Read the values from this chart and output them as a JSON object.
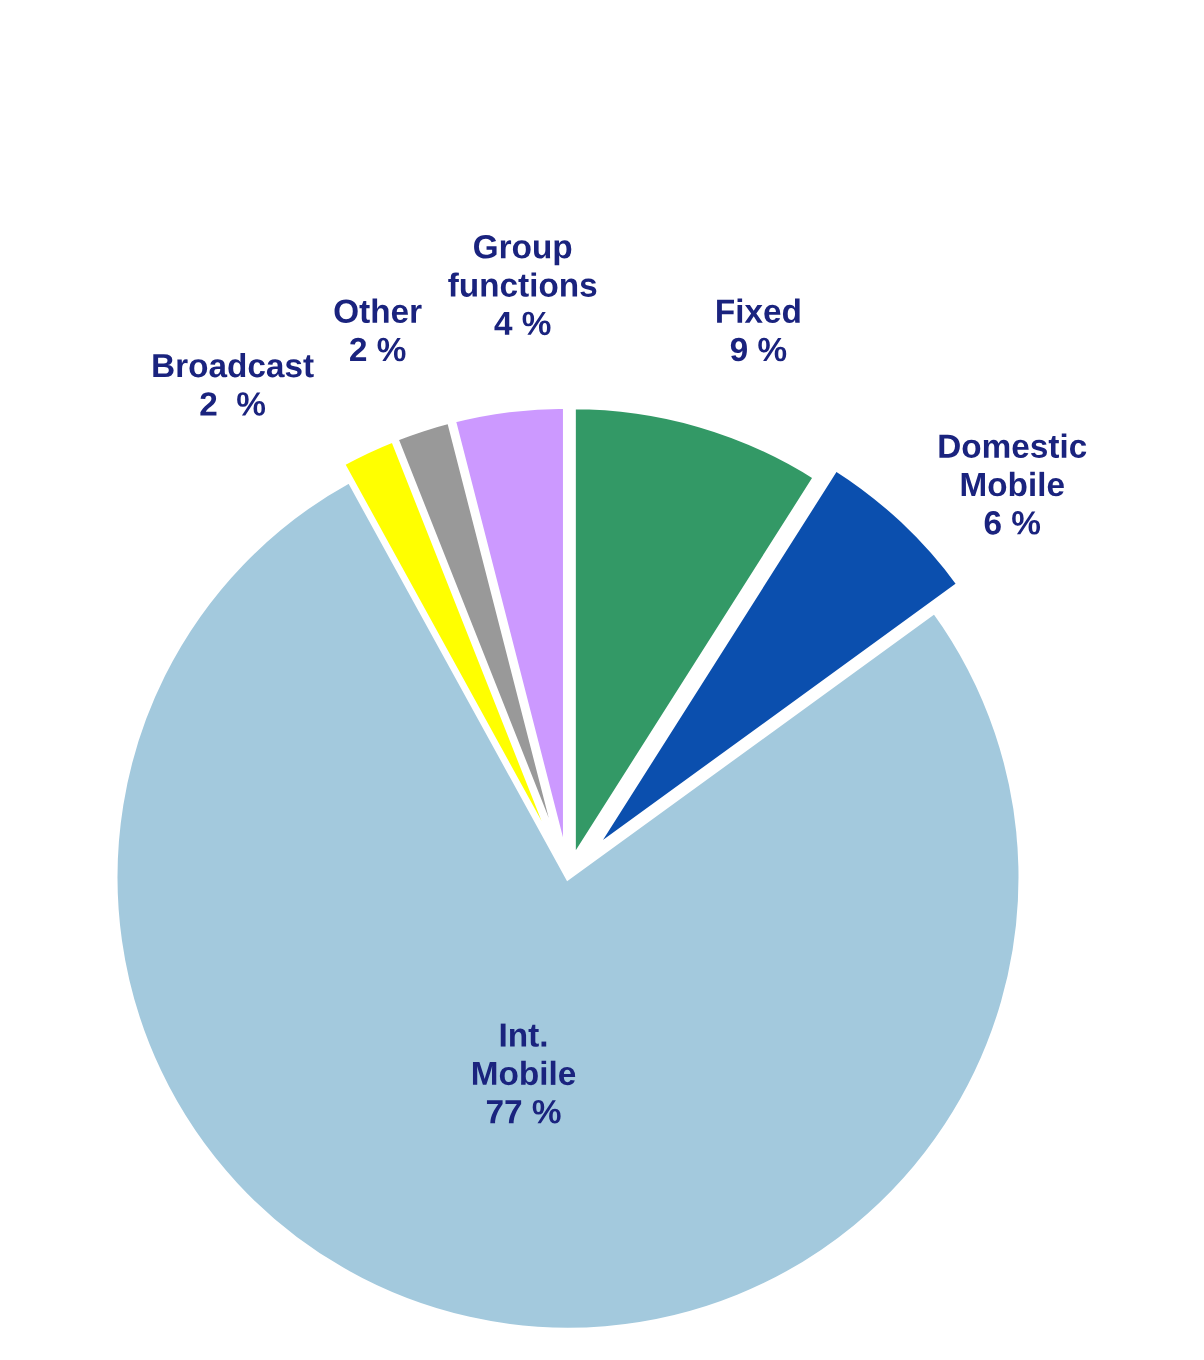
{
  "chart_data": {
    "type": "pie",
    "categories": [
      "Fixed",
      "Domestic Mobile",
      "Int. Mobile",
      "Broadcast",
      "Other",
      "Group functions"
    ],
    "values": [
      9,
      6,
      77,
      2,
      2,
      4
    ],
    "colors": [
      "#339966",
      "#0b4fae",
      "#a3c9dd",
      "#ffff00",
      "#999999",
      "#cc99ff"
    ],
    "value_labels": [
      "9 %",
      "6 %",
      "77 %",
      "2  %",
      "2 %",
      "4 %"
    ]
  }
}
